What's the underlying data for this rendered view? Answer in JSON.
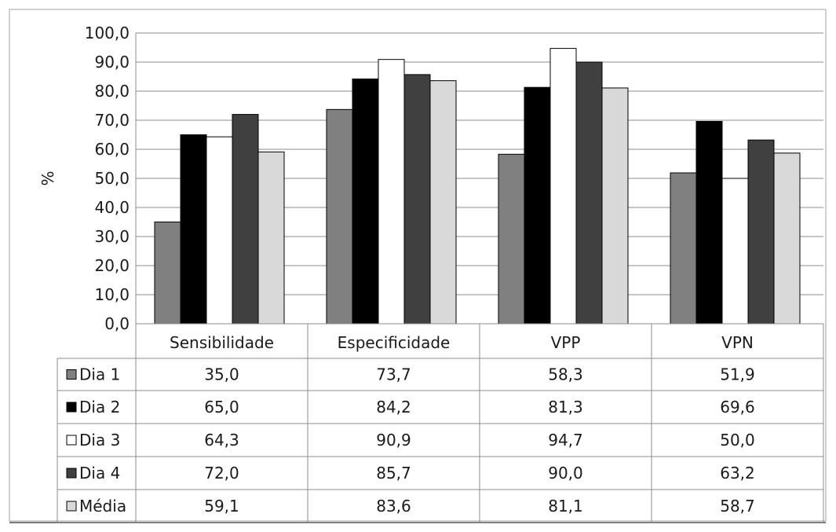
{
  "chart_data": {
    "type": "bar",
    "title": "",
    "xlabel": "",
    "ylabel": "%",
    "ylim": [
      0,
      100
    ],
    "yticks": [
      "0,0",
      "10,0",
      "20,0",
      "30,0",
      "40,0",
      "50,0",
      "60,0",
      "70,0",
      "80,0",
      "90,0",
      "100,0"
    ],
    "ytick_values": [
      0,
      10,
      20,
      30,
      40,
      50,
      60,
      70,
      80,
      90,
      100
    ],
    "grid": true,
    "legend": "data-table-below",
    "categories": [
      "Sensibilidade",
      "Especificidade",
      "VPP",
      "VPN"
    ],
    "series": [
      {
        "name": "Dia 1",
        "color": "#808080",
        "values": [
          35.0,
          73.7,
          58.3,
          51.9
        ],
        "labels": [
          "35,0",
          "73,7",
          "58,3",
          "51,9"
        ]
      },
      {
        "name": "Dia 2",
        "color": "#000000",
        "values": [
          65.0,
          84.2,
          81.3,
          69.6
        ],
        "labels": [
          "65,0",
          "84,2",
          "81,3",
          "69,6"
        ]
      },
      {
        "name": "Dia 3",
        "color": "#ffffff",
        "values": [
          64.3,
          90.9,
          94.7,
          50.0
        ],
        "labels": [
          "64,3",
          "90,9",
          "94,7",
          "50,0"
        ]
      },
      {
        "name": "Dia 4",
        "color": "#404040",
        "values": [
          72.0,
          85.7,
          90.0,
          63.2
        ],
        "labels": [
          "72,0",
          "85,7",
          "90,0",
          "63,2"
        ]
      },
      {
        "name": "Média",
        "color": "#d9d9d9",
        "values": [
          59.1,
          83.6,
          81.1,
          58.7
        ],
        "labels": [
          "59,1",
          "83,6",
          "81,1",
          "58,7"
        ]
      }
    ]
  }
}
